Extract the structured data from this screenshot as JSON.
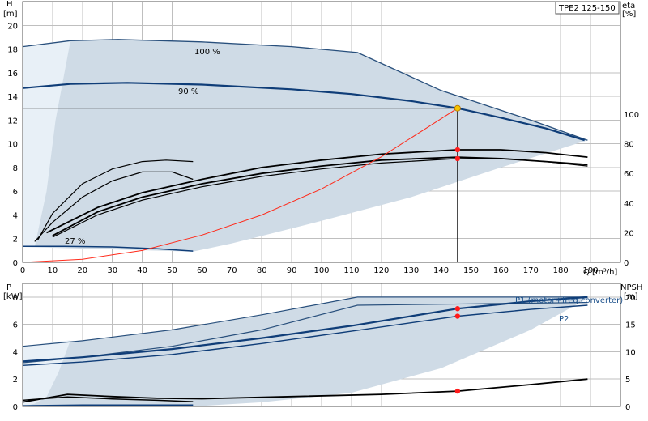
{
  "title_box": "TPE2 125-150",
  "colors": {
    "band_fill": "#cfdbe6",
    "band_light": "#e8f0f7",
    "band_edge": "#284f7c",
    "curve_main": "#0f3d78",
    "curve_black": "#000000",
    "curve_red": "#ff2a1a",
    "point_red": "#ff1a1a",
    "point_yellow": "#f5c400",
    "grid": "#bfbfbf",
    "label_blue": "#1a4f8a"
  },
  "chart_data": [
    {
      "type": "line",
      "name": "upper",
      "y_label": [
        "H",
        "[m]"
      ],
      "y2_label": [
        "eta",
        "[%]"
      ],
      "x_label": "Q [m³/h]",
      "xlim": [
        0,
        200
      ],
      "ylim": [
        0,
        22
      ],
      "y2lim": [
        0,
        176
      ],
      "x_ticks": [
        0,
        10,
        20,
        30,
        40,
        50,
        60,
        70,
        80,
        90,
        100,
        110,
        120,
        130,
        140,
        150,
        160,
        170,
        180,
        190
      ],
      "y_ticks": [
        0,
        2,
        4,
        6,
        8,
        10,
        12,
        14,
        16,
        18,
        20
      ],
      "y2_ticks": [
        0,
        20,
        40,
        60,
        80,
        100
      ],
      "grid": true,
      "annotations": [
        {
          "text": "100 %",
          "x": 216,
          "y": 18.8
        },
        {
          "text": "90 %",
          "x": 220,
          "y": 15.2
        },
        {
          "text": "27 %",
          "x": 14,
          "y": 1.8
        }
      ],
      "operating_point": {
        "x": 145.5,
        "y": 13.0
      },
      "eta_points": [
        {
          "x": 145.5,
          "y": 76
        },
        {
          "x": 145.5,
          "y": 70
        }
      ],
      "series": [
        {
          "name": "100 %",
          "points": [
            [
              0,
              18.2
            ],
            [
              16,
              18.7
            ],
            [
              32,
              18.8
            ],
            [
              60,
              18.6
            ],
            [
              90,
              18.2
            ],
            [
              112,
              17.7
            ],
            [
              140,
              14.5
            ],
            [
              170,
              12.0
            ],
            [
              189,
              10.3
            ]
          ]
        },
        {
          "name": "90 %",
          "points": [
            [
              0,
              14.7
            ],
            [
              16,
              15.05
            ],
            [
              35,
              15.15
            ],
            [
              60,
              15.0
            ],
            [
              90,
              14.6
            ],
            [
              110,
              14.2
            ],
            [
              130,
              13.6
            ],
            [
              145.5,
              13.0
            ],
            [
              160,
              12.2
            ],
            [
              175,
              11.3
            ],
            [
              188,
              10.3
            ]
          ]
        },
        {
          "name": "27 %",
          "points": [
            [
              0,
              1.35
            ],
            [
              14,
              1.35
            ],
            [
              30,
              1.3
            ],
            [
              45,
              1.15
            ],
            [
              57,
              0.95
            ]
          ]
        },
        {
          "name": "band_lower",
          "points": [
            [
              0,
              1.3
            ],
            [
              57,
              0.9
            ],
            [
              70,
              1.6
            ],
            [
              100,
              3.5
            ],
            [
              130,
              5.5
            ],
            [
              160,
              8.0
            ],
            [
              189,
              10.3
            ]
          ]
        },
        {
          "name": "eta_short",
          "axis": "y2",
          "points": [
            [
              5,
              15
            ],
            [
              10,
              33
            ],
            [
              20,
              53
            ],
            [
              30,
              63
            ],
            [
              40,
              68
            ],
            [
              48,
              69
            ],
            [
              57,
              68
            ]
          ]
        },
        {
          "name": "eta_arc",
          "axis": "y2",
          "points": [
            [
              4,
              14
            ],
            [
              10,
              27
            ],
            [
              20,
              44
            ],
            [
              30,
              55
            ],
            [
              40,
              61
            ],
            [
              50,
              61
            ],
            [
              57,
              56
            ]
          ]
        },
        {
          "name": "eta_1",
          "axis": "y2",
          "points": [
            [
              10,
              17
            ],
            [
              25,
              32
            ],
            [
              40,
              42
            ],
            [
              60,
              51
            ],
            [
              80,
              58
            ],
            [
              100,
              63
            ],
            [
              120,
              67
            ],
            [
              145.5,
              70
            ],
            [
              160,
              70
            ],
            [
              175,
              68
            ],
            [
              189,
              65
            ]
          ]
        },
        {
          "name": "eta_2",
          "axis": "y2",
          "points": [
            [
              10,
              18
            ],
            [
              25,
              34
            ],
            [
              40,
              44
            ],
            [
              60,
              53
            ],
            [
              80,
              60
            ],
            [
              100,
              65
            ],
            [
              120,
              69
            ],
            [
              145.5,
              71
            ],
            [
              160,
              70
            ],
            [
              175,
              68
            ],
            [
              189,
              66
            ]
          ]
        },
        {
          "name": "eta_3",
          "axis": "y2",
          "points": [
            [
              8,
              20
            ],
            [
              25,
              37
            ],
            [
              40,
              47
            ],
            [
              60,
              56
            ],
            [
              80,
              64
            ],
            [
              100,
              69
            ],
            [
              120,
              73
            ],
            [
              145.5,
              76
            ],
            [
              160,
              76
            ],
            [
              175,
              74
            ],
            [
              189,
              71
            ]
          ]
        },
        {
          "name": "system",
          "points": [
            [
              0,
              0
            ],
            [
              20,
              0.26
            ],
            [
              40,
              1.0
            ],
            [
              60,
              2.3
            ],
            [
              80,
              4.0
            ],
            [
              100,
              6.2
            ],
            [
              120,
              8.9
            ],
            [
              145.5,
              13.0
            ]
          ]
        }
      ]
    },
    {
      "type": "line",
      "name": "lower",
      "y_label": [
        "P",
        "[kW]"
      ],
      "y2_label": [
        "NPSH",
        "[m]"
      ],
      "xlim": [
        0,
        200
      ],
      "ylim": [
        0,
        9
      ],
      "y2lim": [
        0,
        22.5
      ],
      "y_ticks": [
        0,
        2,
        4,
        6,
        8
      ],
      "y2_ticks": [
        0,
        5,
        10,
        15,
        20
      ],
      "grid": true,
      "legend": [
        {
          "text": "P1 (motor+freq.converter)"
        },
        {
          "text": "P2"
        }
      ],
      "points_red": [
        {
          "x": 145.5,
          "y": 7.15
        },
        {
          "x": 145.5,
          "y": 6.6
        },
        {
          "x": 145.5,
          "y": 1.12
        }
      ],
      "series": [
        {
          "name": "P1 100 %",
          "points": [
            [
              0,
              4.4
            ],
            [
              20,
              4.8
            ],
            [
              50,
              5.6
            ],
            [
              80,
              6.7
            ],
            [
              112,
              8.0
            ],
            [
              150,
              8.0
            ],
            [
              189,
              8.0
            ]
          ]
        },
        {
          "name": "P2 100 %",
          "points": [
            [
              0,
              3.2
            ],
            [
              20,
              3.6
            ],
            [
              50,
              4.4
            ],
            [
              80,
              5.6
            ],
            [
              112,
              7.4
            ],
            [
              150,
              7.5
            ],
            [
              189,
              7.6
            ]
          ]
        },
        {
          "name": "P1 90 %",
          "points": [
            [
              0,
              3.3
            ],
            [
              20,
              3.6
            ],
            [
              50,
              4.2
            ],
            [
              80,
              5.0
            ],
            [
              110,
              5.9
            ],
            [
              145.5,
              7.15
            ],
            [
              170,
              7.7
            ],
            [
              189,
              8.0
            ]
          ]
        },
        {
          "name": "P2 90 %",
          "points": [
            [
              0,
              3.0
            ],
            [
              20,
              3.25
            ],
            [
              50,
              3.8
            ],
            [
              80,
              4.6
            ],
            [
              110,
              5.5
            ],
            [
              145.5,
              6.6
            ],
            [
              170,
              7.1
            ],
            [
              189,
              7.4
            ]
          ]
        },
        {
          "name": "P 27 % a",
          "points": [
            [
              0,
              0.45
            ],
            [
              15,
              0.7
            ],
            [
              30,
              0.55
            ],
            [
              45,
              0.45
            ],
            [
              57,
              0.35
            ]
          ]
        },
        {
          "name": "P 27 % b",
          "points": [
            [
              0,
              0.05
            ],
            [
              20,
              0.1
            ],
            [
              40,
              0.1
            ],
            [
              57,
              0.1
            ]
          ]
        },
        {
          "name": "P 27 % c",
          "points": [
            [
              0,
              0.0
            ],
            [
              20,
              0.04
            ],
            [
              57,
              0.04
            ]
          ]
        },
        {
          "name": "band_lower",
          "points": [
            [
              0,
              0.0
            ],
            [
              57,
              0.0
            ],
            [
              80,
              0.3
            ],
            [
              110,
              1.0
            ],
            [
              140,
              2.8
            ],
            [
              170,
              5.6
            ],
            [
              189,
              7.9
            ]
          ]
        },
        {
          "name": "NPSH",
          "axis": "y2",
          "points": [
            [
              0,
              0.8
            ],
            [
              15,
              2.2
            ],
            [
              30,
              1.8
            ],
            [
              45,
              1.5
            ],
            [
              60,
              1.4
            ],
            [
              90,
              1.8
            ],
            [
              120,
              2.2
            ],
            [
              145.5,
              2.8
            ],
            [
              170,
              4.0
            ],
            [
              189,
              5.0
            ]
          ]
        }
      ]
    }
  ]
}
